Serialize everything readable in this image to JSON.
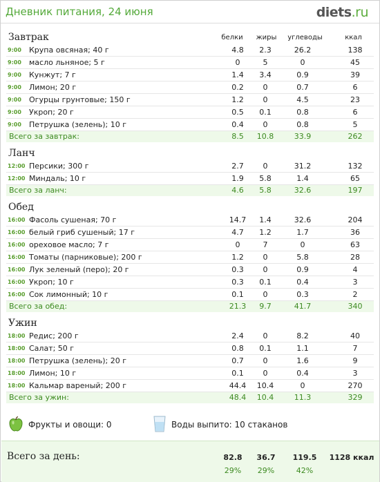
{
  "header": {
    "title": "Дневник питания, 24 июня",
    "logo_main": "diets",
    "logo_suffix": ".ru"
  },
  "columns": {
    "b": "белки",
    "z": "жиры",
    "u": "углеводы",
    "k": "ккал"
  },
  "meals": [
    {
      "name": "Завтрак",
      "items": [
        {
          "time": "9:00",
          "name": "Крупа овсяная; 40 г",
          "b": "4.8",
          "z": "2.3",
          "u": "26.2",
          "k": "138"
        },
        {
          "time": "9:00",
          "name": "масло льняное; 5 г",
          "b": "0",
          "z": "5",
          "u": "0",
          "k": "45"
        },
        {
          "time": "9:00",
          "name": "Кунжут; 7 г",
          "b": "1.4",
          "z": "3.4",
          "u": "0.9",
          "k": "39"
        },
        {
          "time": "9:00",
          "name": "Лимон; 20 г",
          "b": "0.2",
          "z": "0",
          "u": "0.7",
          "k": "6"
        },
        {
          "time": "9:00",
          "name": "Огурцы грунтовые; 150 г",
          "b": "1.2",
          "z": "0",
          "u": "4.5",
          "k": "23"
        },
        {
          "time": "9:00",
          "name": "Укроп; 20 г",
          "b": "0.5",
          "z": "0.1",
          "u": "0.8",
          "k": "6"
        },
        {
          "time": "9:00",
          "name": "Петрушка (зелень); 10 г",
          "b": "0.4",
          "z": "0",
          "u": "0.8",
          "k": "5"
        }
      ],
      "total": {
        "label": "Всего за завтрак:",
        "b": "8.5",
        "z": "10.8",
        "u": "33.9",
        "k": "262"
      }
    },
    {
      "name": "Ланч",
      "items": [
        {
          "time": "12:00",
          "name": "Персики; 300 г",
          "b": "2.7",
          "z": "0",
          "u": "31.2",
          "k": "132"
        },
        {
          "time": "12:00",
          "name": "Миндаль; 10 г",
          "b": "1.9",
          "z": "5.8",
          "u": "1.4",
          "k": "65"
        }
      ],
      "total": {
        "label": "Всего за ланч:",
        "b": "4.6",
        "z": "5.8",
        "u": "32.6",
        "k": "197"
      }
    },
    {
      "name": "Обед",
      "items": [
        {
          "time": "16:00",
          "name": "Фасоль сушеная; 70 г",
          "b": "14.7",
          "z": "1.4",
          "u": "32.6",
          "k": "204"
        },
        {
          "time": "16:00",
          "name": "белый гриб сушеный; 17 г",
          "b": "4.7",
          "z": "1.2",
          "u": "1.7",
          "k": "36"
        },
        {
          "time": "16:00",
          "name": "ореховое масло; 7 г",
          "b": "0",
          "z": "7",
          "u": "0",
          "k": "63"
        },
        {
          "time": "16:00",
          "name": "Томаты (парниковые); 200 г",
          "b": "1.2",
          "z": "0",
          "u": "5.8",
          "k": "28"
        },
        {
          "time": "16:00",
          "name": "Лук зеленый (перо); 20 г",
          "b": "0.3",
          "z": "0",
          "u": "0.9",
          "k": "4"
        },
        {
          "time": "16:00",
          "name": "Укроп; 10 г",
          "b": "0.3",
          "z": "0.1",
          "u": "0.4",
          "k": "3"
        },
        {
          "time": "16:00",
          "name": "Сок лимонный; 10 г",
          "b": "0.1",
          "z": "0",
          "u": "0.3",
          "k": "2"
        }
      ],
      "total": {
        "label": "Всего за обед:",
        "b": "21.3",
        "z": "9.7",
        "u": "41.7",
        "k": "340"
      }
    },
    {
      "name": "Ужин",
      "items": [
        {
          "time": "18:00",
          "name": "Редис; 200 г",
          "b": "2.4",
          "z": "0",
          "u": "8.2",
          "k": "40"
        },
        {
          "time": "18:00",
          "name": "Салат; 50 г",
          "b": "0.8",
          "z": "0.1",
          "u": "1.1",
          "k": "7"
        },
        {
          "time": "18:00",
          "name": "Петрушка (зелень); 20 г",
          "b": "0.7",
          "z": "0",
          "u": "1.6",
          "k": "9"
        },
        {
          "time": "18:00",
          "name": "Лимон; 10 г",
          "b": "0.1",
          "z": "0",
          "u": "0.4",
          "k": "3"
        },
        {
          "time": "18:00",
          "name": "Кальмар вареный; 200 г",
          "b": "44.4",
          "z": "10.4",
          "u": "0",
          "k": "270"
        }
      ],
      "total": {
        "label": "Всего за ужин:",
        "b": "48.4",
        "z": "10.4",
        "u": "11.3",
        "k": "329"
      }
    }
  ],
  "extras": {
    "fruits": "Фрукты и овощи: 0",
    "water": "Воды выпито: 10 стаканов"
  },
  "day_total": {
    "label": "Всего за день:",
    "b": "82.8",
    "z": "36.7",
    "u": "119.5",
    "k": "1128 ккал",
    "b_pct": "29%",
    "z_pct": "29%",
    "u_pct": "42%"
  },
  "colors": {
    "accent": "#54a93a",
    "total_bg": "#eef9e9",
    "total_text": "#3d8a21"
  },
  "icons": {
    "fruits": "apple-icon",
    "water": "glass-icon"
  }
}
